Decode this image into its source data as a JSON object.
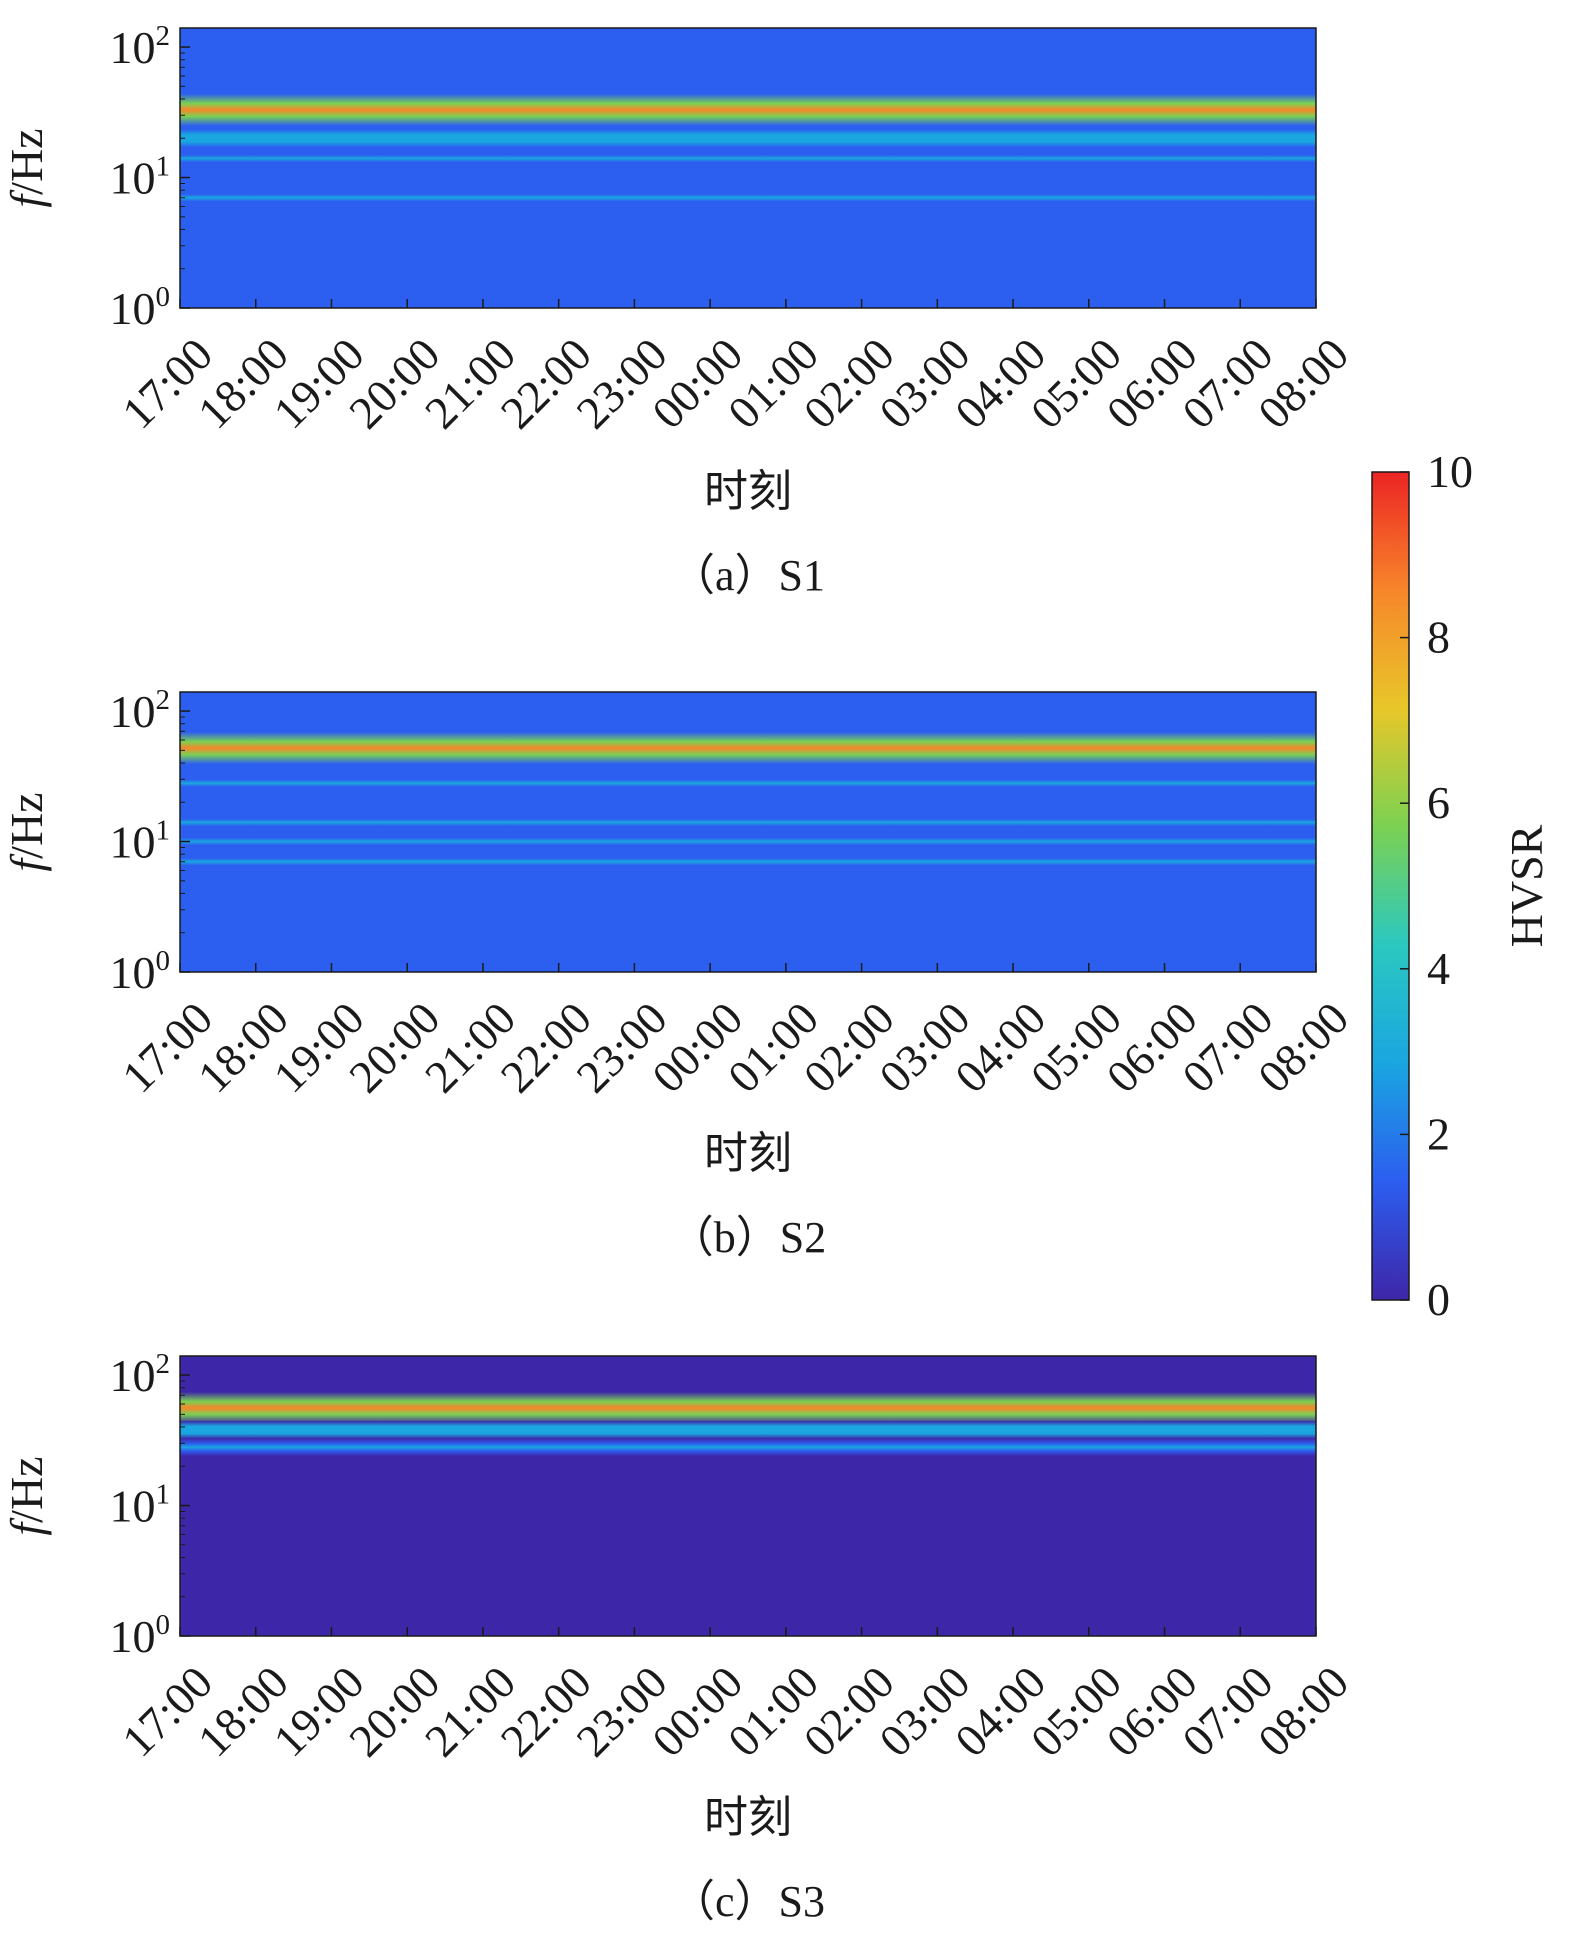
{
  "colorbar": {
    "label": "HVSR",
    "range": [
      0,
      10
    ],
    "ticks": [
      "0",
      "2",
      "4",
      "6",
      "8",
      "10"
    ],
    "colormap": [
      "#3e26a8",
      "#2c5ef0",
      "#1aa6e0",
      "#2bc8c0",
      "#7bd152",
      "#e8c72a",
      "#f7862a",
      "#ec2424"
    ]
  },
  "chart_data": [
    {
      "type": "heatmap",
      "caption": "（a）S1",
      "xlabel": "时刻",
      "ylabel_italic": "f",
      "ylabel_unit": "/Hz",
      "x_ticks": [
        "17:00",
        "18:00",
        "19:00",
        "20:00",
        "21:00",
        "22:00",
        "23:00",
        "00:00",
        "01:00",
        "02:00",
        "03:00",
        "04:00",
        "05:00",
        "06:00",
        "07:00",
        "08:00"
      ],
      "y_ticks": [
        {
          "base": "10",
          "exp": "0",
          "value": 1
        },
        {
          "base": "10",
          "exp": "1",
          "value": 10
        },
        {
          "base": "10",
          "exp": "2",
          "value": 100
        }
      ],
      "y_scale": "log",
      "ylim_hz": [
        1,
        140
      ],
      "background_hvsr": 1,
      "bands": [
        {
          "freq_hz": 33,
          "peak_hvsr": 8.8
        },
        {
          "freq_hz": 20,
          "peak_hvsr": 3.2
        },
        {
          "freq_hz": 14,
          "peak_hvsr": 2.6
        },
        {
          "freq_hz": 7,
          "peak_hvsr": 2.8
        },
        {
          "freq_hz": 4.2,
          "peak_hvsr": 1.6
        },
        {
          "freq_hz": 2.2,
          "peak_hvsr": 1.4
        }
      ]
    },
    {
      "type": "heatmap",
      "caption": "（b）S2",
      "xlabel": "时刻",
      "ylabel_italic": "f",
      "ylabel_unit": "/Hz",
      "x_ticks": [
        "17:00",
        "18:00",
        "19:00",
        "20:00",
        "21:00",
        "22:00",
        "23:00",
        "00:00",
        "01:00",
        "02:00",
        "03:00",
        "04:00",
        "05:00",
        "06:00",
        "07:00",
        "08:00"
      ],
      "y_ticks": [
        {
          "base": "10",
          "exp": "0",
          "value": 1
        },
        {
          "base": "10",
          "exp": "1",
          "value": 10
        },
        {
          "base": "10",
          "exp": "2",
          "value": 100
        }
      ],
      "y_scale": "log",
      "ylim_hz": [
        1,
        140
      ],
      "background_hvsr": 0.9,
      "bands": [
        {
          "freq_hz": 52,
          "peak_hvsr": 8.0
        },
        {
          "freq_hz": 28,
          "peak_hvsr": 2.6
        },
        {
          "freq_hz": 14,
          "peak_hvsr": 2.8
        },
        {
          "freq_hz": 10,
          "peak_hvsr": 2.4
        },
        {
          "freq_hz": 7,
          "peak_hvsr": 2.3
        },
        {
          "freq_hz": 4.5,
          "peak_hvsr": 1.6
        },
        {
          "freq_hz": 2.7,
          "peak_hvsr": 1.4
        },
        {
          "freq_hz": 1.5,
          "peak_hvsr": 1.3
        }
      ]
    },
    {
      "type": "heatmap",
      "caption": "（c）S3",
      "xlabel": "时刻",
      "ylabel_italic": "f",
      "ylabel_unit": "/Hz",
      "x_ticks": [
        "17:00",
        "18:00",
        "19:00",
        "20:00",
        "21:00",
        "22:00",
        "23:00",
        "00:00",
        "01:00",
        "02:00",
        "03:00",
        "04:00",
        "05:00",
        "06:00",
        "07:00",
        "08:00"
      ],
      "y_ticks": [
        {
          "base": "10",
          "exp": "0",
          "value": 1
        },
        {
          "base": "10",
          "exp": "1",
          "value": 10
        },
        {
          "base": "10",
          "exp": "2",
          "value": 100
        }
      ],
      "y_scale": "log",
      "ylim_hz": [
        1,
        140
      ],
      "background_hvsr": 0.7,
      "bands": [
        {
          "freq_hz": 56,
          "peak_hvsr": 8.5
        },
        {
          "freq_hz": 38,
          "peak_hvsr": 3.2
        },
        {
          "freq_hz": 28,
          "peak_hvsr": 2.2
        }
      ]
    }
  ]
}
